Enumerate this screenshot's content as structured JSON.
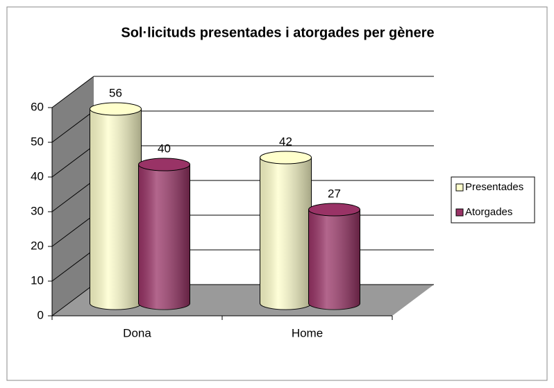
{
  "chart_data": {
    "type": "bar",
    "title": "Sol·licituds presentades i atorgades per gènere",
    "categories": [
      "Dona",
      "Home"
    ],
    "series": [
      {
        "name": "Presentades",
        "color": "#ffffcc",
        "values": [
          56,
          42
        ]
      },
      {
        "name": "Atorgades",
        "color": "#993366",
        "values": [
          40,
          27
        ]
      }
    ],
    "ylim": [
      0,
      60
    ],
    "yticks": [
      0,
      10,
      20,
      30,
      40,
      50,
      60
    ],
    "grid": true,
    "legend": "right"
  }
}
